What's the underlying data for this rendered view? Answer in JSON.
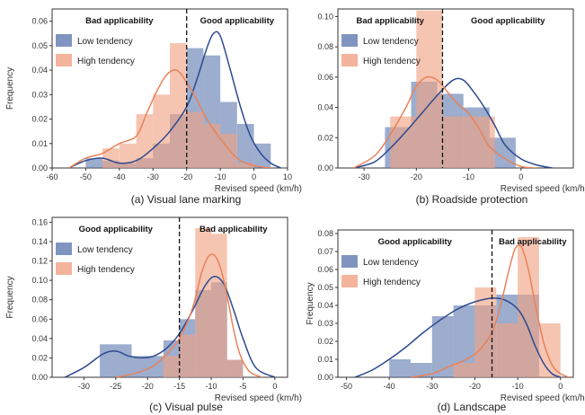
{
  "colors": {
    "low": "#5f7bb0",
    "high": "#f0a182",
    "low_line": "#2d4a8f",
    "high_line": "#e8825a"
  },
  "chart_data": [
    {
      "type": "bar",
      "caption": "(a) Visual lane marking",
      "xlabel": "Revised speed (km/h)",
      "ylabel": "Frequency",
      "xlim": [
        -60,
        10
      ],
      "ylim": [
        0,
        0.065
      ],
      "xticks": [
        -60,
        -50,
        -40,
        -30,
        -20,
        -10,
        0,
        10
      ],
      "yticks": [
        0.0,
        0.01,
        0.02,
        0.03,
        0.04,
        0.05,
        0.06
      ],
      "ytick_labels": [
        "0.00",
        "0.01",
        "0.02",
        "0.03",
        "0.04",
        "0.05",
        "0.06"
      ],
      "threshold": -20,
      "annotations": [
        {
          "text": "Bad applicability",
          "side": "left"
        },
        {
          "text": "Good applicability",
          "side": "right"
        }
      ],
      "legend_position": "upper-left",
      "series": [
        {
          "name": "Low tendency",
          "bins": [
            [
              -50,
              -45
            ],
            [
              -45,
              -40
            ],
            [
              -40,
              -35
            ],
            [
              -35,
              -30
            ],
            [
              -30,
              -25
            ],
            [
              -25,
              -20
            ],
            [
              -20,
              -15
            ],
            [
              -15,
              -10
            ],
            [
              -10,
              -5
            ],
            [
              -5,
              0
            ],
            [
              0,
              5
            ]
          ],
          "values": [
            0.004,
            0.003,
            0.002,
            0.004,
            0.01,
            0.022,
            0.049,
            0.046,
            0.027,
            0.018,
            0.01
          ],
          "kde_x": [
            -55,
            -50,
            -45,
            -40,
            -35,
            -30,
            -25,
            -20,
            -17,
            -14,
            -12,
            -10,
            -7,
            -4,
            -1,
            2,
            5,
            8
          ],
          "kde_y": [
            0.0,
            0.003,
            0.004,
            0.002,
            0.003,
            0.008,
            0.015,
            0.025,
            0.036,
            0.049,
            0.055,
            0.054,
            0.04,
            0.025,
            0.013,
            0.006,
            0.002,
            0.0
          ]
        },
        {
          "name": "High tendency",
          "bins": [
            [
              -45,
              -40
            ],
            [
              -40,
              -35
            ],
            [
              -35,
              -30
            ],
            [
              -30,
              -25
            ],
            [
              -25,
              -20
            ],
            [
              -20,
              -15
            ],
            [
              -15,
              -10
            ],
            [
              -10,
              -5
            ],
            [
              -5,
              0
            ]
          ],
          "values": [
            0.008,
            0.01,
            0.022,
            0.03,
            0.051,
            0.023,
            0.018,
            0.014,
            0.002
          ],
          "kde_x": [
            -55,
            -50,
            -45,
            -40,
            -35,
            -32,
            -29,
            -26,
            -23,
            -20,
            -17,
            -14,
            -10,
            -5,
            0,
            5
          ],
          "kde_y": [
            0.0,
            0.004,
            0.006,
            0.01,
            0.013,
            0.022,
            0.031,
            0.038,
            0.04,
            0.035,
            0.028,
            0.02,
            0.012,
            0.004,
            0.001,
            0.0
          ]
        }
      ]
    },
    {
      "type": "bar",
      "caption": "(b) Roadside protection",
      "xlabel": "Revised speed (km/h)",
      "ylabel": "",
      "xlim": [
        -35,
        10
      ],
      "ylim": [
        0,
        0.105
      ],
      "xticks": [
        -30,
        -20,
        -10,
        0
      ],
      "yticks": [
        0.0,
        0.02,
        0.04,
        0.06,
        0.08,
        0.1
      ],
      "ytick_labels": [
        "0.00",
        "0.02",
        "0.04",
        "0.06",
        "0.08",
        "0.10"
      ],
      "threshold": -15,
      "annotations": [
        {
          "text": "Bad applicability",
          "side": "left"
        },
        {
          "text": "Good applicability",
          "side": "right"
        }
      ],
      "legend_position": "upper-left",
      "series": [
        {
          "name": "Low tendency",
          "bins": [
            [
              -26,
              -21
            ],
            [
              -21,
              -16
            ],
            [
              -16,
              -11
            ],
            [
              -11,
              -6
            ],
            [
              -6,
              -1
            ]
          ],
          "values": [
            0.027,
            0.057,
            0.049,
            0.04,
            0.02
          ],
          "kde_x": [
            -32,
            -28,
            -25,
            -22,
            -19,
            -16,
            -13,
            -11,
            -9,
            -7,
            -5,
            -3,
            0,
            3,
            6
          ],
          "kde_y": [
            0.0,
            0.004,
            0.013,
            0.024,
            0.036,
            0.048,
            0.058,
            0.058,
            0.05,
            0.04,
            0.028,
            0.015,
            0.006,
            0.002,
            0.0
          ]
        },
        {
          "name": "High tendency",
          "bins": [
            [
              -25,
              -20
            ],
            [
              -20,
              -15
            ],
            [
              -15,
              -10
            ],
            [
              -10,
              -5
            ],
            [
              -5,
              0
            ]
          ],
          "values": [
            0.034,
            0.104,
            0.034,
            0.034,
            0.0
          ],
          "kde_x": [
            -32,
            -28,
            -25,
            -22,
            -20,
            -18,
            -16,
            -14,
            -12,
            -10,
            -8,
            -6,
            -3,
            0,
            3
          ],
          "kde_y": [
            0.0,
            0.008,
            0.022,
            0.04,
            0.054,
            0.06,
            0.058,
            0.05,
            0.042,
            0.036,
            0.026,
            0.014,
            0.006,
            0.001,
            0.0
          ]
        }
      ]
    },
    {
      "type": "bar",
      "caption": "(c) Visual pulse",
      "xlabel": "Revised speed (km/h)",
      "ylabel": "Frequency",
      "xlim": [
        -35,
        2
      ],
      "ylim": [
        0,
        0.165
      ],
      "xticks": [
        -30,
        -25,
        -20,
        -15,
        -10,
        -5,
        0
      ],
      "yticks": [
        0.0,
        0.02,
        0.04,
        0.06,
        0.08,
        0.1,
        0.12,
        0.14,
        0.16
      ],
      "ytick_labels": [
        "0.00",
        "0.02",
        "0.04",
        "0.06",
        "0.08",
        "0.10",
        "0.12",
        "0.14",
        "0.16"
      ],
      "threshold": -15,
      "annotations": [
        {
          "text": "Good applicability",
          "side": "left"
        },
        {
          "text": "Bad applicability",
          "side": "right"
        }
      ],
      "legend_position": "upper-left",
      "series": [
        {
          "name": "Low tendency",
          "bins": [
            [
              -27.5,
              -22.5
            ],
            [
              -22.5,
              -17.5
            ],
            [
              -17.5,
              -15
            ],
            [
              -15,
              -12.5
            ],
            [
              -12.5,
              -10
            ],
            [
              -10,
              -7.5
            ],
            [
              -7.5,
              -5
            ]
          ],
          "values": [
            0.034,
            0.022,
            0.038,
            0.06,
            0.09,
            0.098,
            0.018
          ],
          "kde_x": [
            -33,
            -30,
            -27,
            -25,
            -23,
            -21,
            -19,
            -17,
            -15,
            -13,
            -11,
            -9.5,
            -8,
            -6.5,
            -5,
            -3,
            0
          ],
          "kde_y": [
            0.0,
            0.01,
            0.024,
            0.027,
            0.022,
            0.02,
            0.022,
            0.03,
            0.045,
            0.068,
            0.094,
            0.104,
            0.096,
            0.07,
            0.04,
            0.01,
            0.0
          ]
        },
        {
          "name": "High tendency",
          "bins": [
            [
              -17.5,
              -15
            ],
            [
              -15,
              -12.5
            ],
            [
              -12.5,
              -10
            ],
            [
              -10,
              -7.5
            ],
            [
              -7.5,
              -5
            ]
          ],
          "values": [
            0.022,
            0.044,
            0.154,
            0.148,
            0.018
          ],
          "kde_x": [
            -25,
            -22,
            -19,
            -17,
            -15,
            -13,
            -11.5,
            -10.5,
            -9.5,
            -8.5,
            -7.5,
            -6.5,
            -5.5,
            -4,
            -2
          ],
          "kde_y": [
            0.0,
            0.004,
            0.012,
            0.024,
            0.04,
            0.07,
            0.108,
            0.124,
            0.126,
            0.112,
            0.084,
            0.05,
            0.024,
            0.006,
            0.0
          ]
        }
      ]
    },
    {
      "type": "bar",
      "caption": "(d) Landscape",
      "xlabel": "Revised speed (km/h)",
      "ylabel": "Frequency",
      "xlim": [
        -52,
        3
      ],
      "ylim": [
        0,
        0.082
      ],
      "xticks": [
        -50,
        -40,
        -30,
        -20,
        -10,
        0
      ],
      "yticks": [
        0.0,
        0.01,
        0.02,
        0.03,
        0.04,
        0.05,
        0.06,
        0.07,
        0.08
      ],
      "ytick_labels": [
        "0.00",
        "0.01",
        "0.02",
        "0.03",
        "0.04",
        "0.05",
        "0.06",
        "0.07",
        "0.08"
      ],
      "threshold": -16,
      "annotations": [
        {
          "text": "Good applicability",
          "side": "left"
        },
        {
          "text": "Bad applicability",
          "side": "right"
        }
      ],
      "legend_position": "upper-left",
      "series": [
        {
          "name": "Low tendency",
          "bins": [
            [
              -40,
              -35
            ],
            [
              -35,
              -30
            ],
            [
              -30,
              -25
            ],
            [
              -25,
              -20
            ],
            [
              -20,
              -15
            ],
            [
              -15,
              -10
            ],
            [
              -10,
              -5
            ]
          ],
          "values": [
            0.01,
            0.008,
            0.034,
            0.04,
            0.04,
            0.046,
            0.046
          ],
          "kde_x": [
            -48,
            -44,
            -40,
            -36,
            -32,
            -28,
            -24,
            -20,
            -16,
            -13,
            -10,
            -8,
            -6,
            -4,
            -2,
            0
          ],
          "kde_y": [
            0.0,
            0.004,
            0.01,
            0.017,
            0.025,
            0.032,
            0.038,
            0.042,
            0.044,
            0.043,
            0.038,
            0.03,
            0.018,
            0.008,
            0.002,
            0.0
          ]
        },
        {
          "name": "High tendency",
          "bins": [
            [
              -25,
              -20
            ],
            [
              -20,
              -15
            ],
            [
              -15,
              -10
            ],
            [
              -10,
              -5
            ],
            [
              -5,
              0
            ]
          ],
          "values": [
            0.008,
            0.05,
            0.03,
            0.078,
            0.03
          ],
          "kde_x": [
            -35,
            -30,
            -26,
            -22,
            -19,
            -16,
            -14,
            -12,
            -10.5,
            -9,
            -7.5,
            -6,
            -4,
            -2,
            0,
            2
          ],
          "kde_y": [
            0.0,
            0.002,
            0.006,
            0.01,
            0.015,
            0.025,
            0.04,
            0.06,
            0.072,
            0.072,
            0.06,
            0.042,
            0.02,
            0.007,
            0.002,
            0.0
          ]
        }
      ]
    }
  ]
}
